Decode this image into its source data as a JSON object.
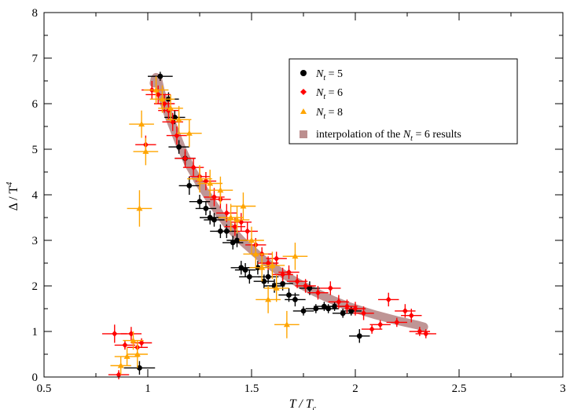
{
  "chart_data": {
    "type": "scatter",
    "xlabel_main": "T / T",
    "xlabel_sub": "c",
    "ylabel_main": "Δ / T",
    "ylabel_sup": "4",
    "xlim": [
      0.5,
      3
    ],
    "ylim": [
      0,
      8
    ],
    "x_ticks": [
      "0.5",
      "1",
      "1.5",
      "2",
      "2.5",
      "3"
    ],
    "y_ticks": [
      "0",
      "1",
      "2",
      "3",
      "4",
      "5",
      "6",
      "7",
      "8"
    ],
    "grid": false,
    "legend_position": "top-right",
    "series": [
      {
        "name": "N_t = 5",
        "legend_main": "N",
        "legend_sub": "t",
        "legend_rest": " = 5",
        "marker": "circle",
        "color": "#000000",
        "points": [
          [
            0.96,
            0.2,
            0.15,
            0,
            0.15
          ],
          [
            1.06,
            6.6,
            0.1,
            0,
            0.12
          ],
          [
            1.1,
            6.1,
            0.15,
            0,
            0.1
          ],
          [
            1.13,
            5.7,
            0.15,
            0,
            0.1
          ],
          [
            1.15,
            5.05,
            0.15,
            0,
            0.1
          ],
          [
            1.18,
            4.8,
            0.15,
            0,
            0.1
          ],
          [
            1.2,
            4.2,
            0.2,
            0,
            0.1
          ],
          [
            1.25,
            3.85,
            0.15,
            0,
            0.1
          ],
          [
            1.28,
            3.7,
            0.15,
            0,
            0.1
          ],
          [
            1.3,
            3.5,
            0.15,
            0,
            0.1
          ],
          [
            1.32,
            3.45,
            0.15,
            0,
            0.1
          ],
          [
            1.35,
            3.2,
            0.15,
            0,
            0.1
          ],
          [
            1.38,
            3.2,
            0.15,
            0,
            0.1
          ],
          [
            1.41,
            2.95,
            0.15,
            0,
            0.1
          ],
          [
            1.43,
            3.0,
            0.15,
            0,
            0.1
          ],
          [
            1.45,
            2.4,
            0.15,
            0,
            0.1
          ],
          [
            1.47,
            2.35,
            0.15,
            0,
            0.1
          ],
          [
            1.49,
            2.2,
            0.15,
            0,
            0.1
          ],
          [
            1.53,
            2.4,
            0.15,
            0,
            0.1
          ],
          [
            1.56,
            2.1,
            0.15,
            0,
            0.1
          ],
          [
            1.58,
            2.2,
            0.15,
            0,
            0.1
          ],
          [
            1.61,
            2.0,
            0.15,
            0,
            0.1
          ],
          [
            1.65,
            2.05,
            0.15,
            0,
            0.1
          ],
          [
            1.68,
            1.8,
            0.15,
            0,
            0.1
          ],
          [
            1.71,
            1.7,
            0.15,
            0,
            0.1
          ],
          [
            1.75,
            1.45,
            0.1,
            0,
            0.1
          ],
          [
            1.78,
            1.95,
            0.15,
            0,
            0.1
          ],
          [
            1.81,
            1.5,
            0.1,
            0,
            0.1
          ],
          [
            1.85,
            1.55,
            0.1,
            0,
            0.1
          ],
          [
            1.87,
            1.5,
            0.1,
            0,
            0.1
          ],
          [
            1.9,
            1.55,
            0.1,
            0,
            0.1
          ],
          [
            1.94,
            1.4,
            0.1,
            0,
            0.1
          ],
          [
            1.98,
            1.45,
            0.1,
            0,
            0.1
          ],
          [
            2.02,
            0.9,
            0.15,
            0,
            0.1
          ]
        ]
      },
      {
        "name": "N_t = 6",
        "legend_main": "N",
        "legend_sub": "t",
        "legend_rest": " = 6",
        "marker": "diamond",
        "color": "#ff0000",
        "points": [
          [
            0.84,
            0.95,
            0.2,
            0,
            0.12
          ],
          [
            0.86,
            0.05,
            0.1,
            0,
            0.1
          ],
          [
            0.89,
            0.7,
            0.1,
            0,
            0.1
          ],
          [
            0.92,
            0.95,
            0.15,
            0,
            0.1
          ],
          [
            0.95,
            0.65,
            0.1,
            0,
            0.1
          ],
          [
            0.97,
            0.75,
            0.1,
            0,
            0.1
          ],
          [
            0.99,
            5.1,
            0.2,
            0,
            0.1
          ],
          [
            1.02,
            6.3,
            0.2,
            0,
            0.1
          ],
          [
            1.05,
            6.2,
            0.2,
            0,
            0.12
          ],
          [
            1.08,
            6.0,
            0.2,
            0,
            0.1
          ],
          [
            1.1,
            5.85,
            0.2,
            0,
            0.1
          ],
          [
            1.12,
            5.6,
            0.2,
            0,
            0.1
          ],
          [
            1.14,
            5.3,
            0.2,
            0,
            0.1
          ],
          [
            1.18,
            4.8,
            0.2,
            0,
            0.1
          ],
          [
            1.22,
            4.6,
            0.2,
            0,
            0.1
          ],
          [
            1.25,
            4.4,
            0.2,
            0,
            0.1
          ],
          [
            1.28,
            4.3,
            0.2,
            0,
            0.1
          ],
          [
            1.32,
            3.95,
            0.2,
            0,
            0.1
          ],
          [
            1.35,
            3.9,
            0.2,
            0,
            0.1
          ],
          [
            1.38,
            3.6,
            0.2,
            0,
            0.1
          ],
          [
            1.42,
            3.3,
            0.2,
            0,
            0.1
          ],
          [
            1.45,
            3.4,
            0.2,
            0,
            0.1
          ],
          [
            1.48,
            3.2,
            0.2,
            0,
            0.1
          ],
          [
            1.52,
            2.9,
            0.15,
            0,
            0.1
          ],
          [
            1.55,
            2.7,
            0.15,
            0,
            0.1
          ],
          [
            1.58,
            2.5,
            0.15,
            0,
            0.1
          ],
          [
            1.62,
            2.6,
            0.15,
            0,
            0.1
          ],
          [
            1.65,
            2.25,
            0.15,
            0,
            0.1
          ],
          [
            1.68,
            2.3,
            0.15,
            0,
            0.1
          ],
          [
            1.72,
            2.1,
            0.15,
            0,
            0.1
          ],
          [
            1.76,
            2.0,
            0.15,
            0,
            0.1
          ],
          [
            1.82,
            1.85,
            0.15,
            0,
            0.1
          ],
          [
            1.88,
            1.95,
            0.15,
            0,
            0.1
          ],
          [
            1.92,
            1.65,
            0.15,
            0,
            0.1
          ],
          [
            1.96,
            1.55,
            0.15,
            0,
            0.1
          ],
          [
            2.0,
            1.5,
            0.15,
            0,
            0.1
          ],
          [
            2.04,
            1.4,
            0.15,
            0,
            0.1
          ],
          [
            2.08,
            1.05,
            0.1,
            0,
            0.1
          ],
          [
            2.12,
            1.15,
            0.1,
            0,
            0.1
          ],
          [
            2.16,
            1.7,
            0.15,
            0,
            0.1
          ],
          [
            2.2,
            1.2,
            0.1,
            0,
            0.1
          ],
          [
            2.24,
            1.45,
            0.15,
            0,
            0.1
          ],
          [
            2.27,
            1.35,
            0.15,
            0,
            0.1
          ],
          [
            2.31,
            1.0,
            0.1,
            0,
            0.1
          ],
          [
            2.34,
            0.95,
            0.1,
            0,
            0.1
          ]
        ]
      },
      {
        "name": "N_t = 8",
        "legend_main": "N",
        "legend_sub": "t",
        "legend_rest": " = 8",
        "marker": "triangle",
        "color": "#ffa500",
        "points": [
          [
            0.87,
            0.25,
            0.2,
            0,
            0.1
          ],
          [
            0.9,
            0.45,
            0.2,
            0,
            0.12
          ],
          [
            0.93,
            0.8,
            0.2,
            0,
            0.1
          ],
          [
            0.95,
            0.5,
            0.3,
            0,
            0.1
          ],
          [
            0.96,
            3.7,
            0.4,
            0,
            0.12
          ],
          [
            0.97,
            5.55,
            0.3,
            0,
            0.12
          ],
          [
            0.99,
            4.95,
            0.3,
            0,
            0.12
          ],
          [
            1.04,
            6.3,
            0.3,
            0,
            0.12
          ],
          [
            1.07,
            6.1,
            0.3,
            0,
            0.12
          ],
          [
            1.11,
            5.9,
            0.3,
            0,
            0.12
          ],
          [
            1.15,
            5.65,
            0.3,
            0,
            0.12
          ],
          [
            1.2,
            5.35,
            0.3,
            0,
            0.12
          ],
          [
            1.25,
            4.35,
            0.3,
            0,
            0.12
          ],
          [
            1.3,
            4.25,
            0.3,
            0,
            0.12
          ],
          [
            1.35,
            4.1,
            0.3,
            0,
            0.12
          ],
          [
            1.4,
            3.5,
            0.3,
            0,
            0.12
          ],
          [
            1.43,
            3.45,
            0.3,
            0,
            0.12
          ],
          [
            1.46,
            3.75,
            0.3,
            0,
            0.12
          ],
          [
            1.5,
            3.0,
            0.3,
            0,
            0.12
          ],
          [
            1.52,
            2.7,
            0.3,
            0,
            0.12
          ],
          [
            1.55,
            2.4,
            0.3,
            0,
            0.12
          ],
          [
            1.58,
            1.7,
            0.3,
            0,
            0.12
          ],
          [
            1.6,
            2.45,
            0.3,
            0,
            0.12
          ],
          [
            1.62,
            1.95,
            0.3,
            0,
            0.12
          ],
          [
            1.67,
            1.15,
            0.3,
            0,
            0.12
          ],
          [
            1.71,
            2.65,
            0.3,
            0,
            0.12
          ]
        ]
      }
    ],
    "interpolation": {
      "name": "interpolation of the N_t = 6 results",
      "legend_prefix": "interpolation of the ",
      "legend_main": "N",
      "legend_sub": "t",
      "legend_rest": " = 6 results",
      "color": "#bc8f8f",
      "x": [
        1.03,
        1.035,
        1.04,
        1.05,
        1.06,
        1.08,
        1.1,
        1.13,
        1.16,
        1.2,
        1.25,
        1.3,
        1.35,
        1.4,
        1.45,
        1.5,
        1.55,
        1.6,
        1.65,
        1.7,
        1.75,
        1.8,
        1.85,
        1.9,
        1.95,
        2.0,
        2.05,
        2.1,
        2.15,
        2.2,
        2.25,
        2.3,
        2.33
      ],
      "y": [
        6.45,
        6.55,
        6.58,
        6.5,
        6.3,
        6.0,
        5.75,
        5.4,
        5.05,
        4.65,
        4.25,
        3.9,
        3.55,
        3.25,
        3.0,
        2.8,
        2.6,
        2.42,
        2.27,
        2.13,
        2.0,
        1.88,
        1.77,
        1.67,
        1.58,
        1.5,
        1.43,
        1.36,
        1.3,
        1.24,
        1.19,
        1.14,
        1.1
      ]
    }
  }
}
